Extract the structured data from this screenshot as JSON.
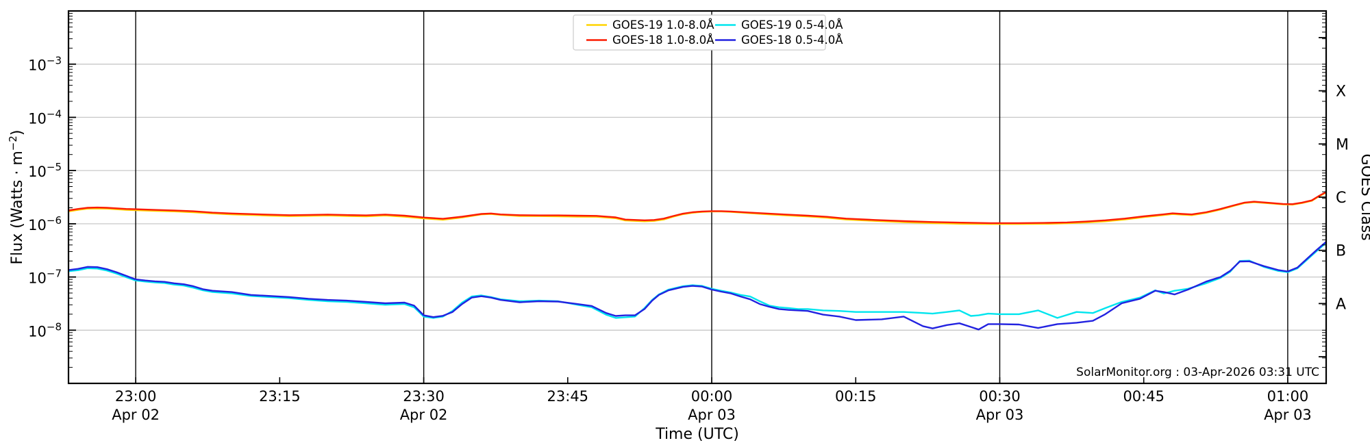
{
  "watermark": "SolarMonitor.org : 03-Apr-2026 03:31 UTC",
  "x_axis": {
    "title": "Time (UTC)",
    "ticks": [
      {
        "m": 0,
        "label": "23:00",
        "date": "Apr 02",
        "line": true
      },
      {
        "m": 15,
        "label": "23:15"
      },
      {
        "m": 30,
        "label": "23:30",
        "date": "Apr 02",
        "line": true
      },
      {
        "m": 45,
        "label": "23:45"
      },
      {
        "m": 60,
        "label": "00:00",
        "date": "Apr 03",
        "line": true
      },
      {
        "m": 75,
        "label": "00:15"
      },
      {
        "m": 90,
        "label": "00:30",
        "date": "Apr 03",
        "line": true
      },
      {
        "m": 105,
        "label": "00:45"
      },
      {
        "m": 120,
        "label": "01:00",
        "date": "Apr 03",
        "line": true
      }
    ]
  },
  "y_axis": {
    "title_prefix": "Flux (Watts · m",
    "title_sup": "−2",
    "title_suffix": ")",
    "label_base": "10",
    "decade_exponents": [
      -3,
      -4,
      -5,
      -6,
      -7,
      -8
    ]
  },
  "right_axis": {
    "title": "GOES Class",
    "classes": [
      {
        "label": "X",
        "exp": -3.5
      },
      {
        "label": "M",
        "exp": -4.5
      },
      {
        "label": "C",
        "exp": -5.5
      },
      {
        "label": "B",
        "exp": -6.5
      },
      {
        "label": "A",
        "exp": -7.5
      }
    ],
    "extra_tick_exps": [
      -2.5,
      -8.5
    ]
  },
  "legend": {
    "items": [
      {
        "id": "goes19-long",
        "label": "GOES-19 1.0-8.0Å",
        "color": "#ffd400"
      },
      {
        "id": "goes18-long",
        "label": "GOES-18 1.0-8.0Å",
        "color": "#fb1b00"
      },
      {
        "id": "goes19-short",
        "label": "GOES-19 0.5-4.0Å",
        "color": "#00e5ee"
      },
      {
        "id": "goes18-short",
        "label": "GOES-18 0.5-4.0Å",
        "color": "#2222e0"
      }
    ]
  },
  "colors": {
    "grid": "#c8c8c8",
    "day_line": "#000000",
    "spine": "#000000",
    "legend_border": "#cccccc"
  },
  "chart_data": {
    "type": "line",
    "title": "",
    "xlabel": "Time (UTC)",
    "ylabel": "Flux (Watts · m^-2)",
    "x_unit": "minutes relative to 23:00 UTC (Apr 02 -> Apr 03 2026)",
    "xlim_minutes": [
      -7,
      124
    ],
    "ylim": [
      1e-09,
      0.01
    ],
    "yscale": "log",
    "grid": "horizontal gray at decades, vertical black at 30-min marks",
    "legend_position": "top center, 2 columns",
    "series": [
      {
        "id": "goes19-long",
        "name": "GOES-19 1.0-8.0Å",
        "color": "#ffd400",
        "unit_scale": 1e-06,
        "x_minutes": [
          -7,
          -6,
          -5,
          -4,
          -3,
          -2,
          -1,
          0,
          2,
          4,
          6,
          8,
          10,
          12,
          14,
          16,
          18,
          20,
          22,
          24,
          26,
          28,
          30,
          32,
          34,
          36,
          37,
          38,
          40,
          42,
          44,
          46,
          48,
          50,
          51,
          53,
          54,
          55,
          56,
          57,
          58,
          59,
          60,
          61,
          62,
          64,
          66,
          68,
          70,
          72,
          74,
          77,
          80,
          83,
          86,
          89,
          92,
          95,
          97,
          99,
          101,
          103,
          105,
          107,
          108,
          109,
          110,
          111.5,
          113,
          114.5,
          115.5,
          116.5,
          118,
          119.5,
          120.5,
          121.5,
          122.5,
          123.2,
          124
        ],
        "flux_scaled": [
          1.71,
          1.82,
          1.92,
          1.94,
          1.92,
          1.87,
          1.82,
          1.8,
          1.75,
          1.71,
          1.65,
          1.56,
          1.5,
          1.46,
          1.42,
          1.39,
          1.41,
          1.43,
          1.4,
          1.38,
          1.43,
          1.36,
          1.26,
          1.19,
          1.31,
          1.5,
          1.53,
          1.47,
          1.4,
          1.39,
          1.38,
          1.36,
          1.35,
          1.27,
          1.15,
          1.11,
          1.13,
          1.2,
          1.36,
          1.51,
          1.61,
          1.67,
          1.7,
          1.7,
          1.67,
          1.58,
          1.5,
          1.43,
          1.37,
          1.3,
          1.2,
          1.13,
          1.07,
          1.03,
          1.0,
          0.99,
          0.99,
          1.0,
          1.02,
          1.06,
          1.11,
          1.2,
          1.33,
          1.45,
          1.52,
          1.48,
          1.45,
          1.6,
          1.85,
          2.2,
          2.45,
          2.55,
          2.43,
          2.31,
          2.29,
          2.45,
          2.7,
          3.24,
          3.88
        ]
      },
      {
        "id": "goes18-long",
        "name": "GOES-18 1.0-8.0Å",
        "color": "#fb1b00",
        "unit_scale": 1e-06,
        "x_minutes": [
          -7,
          -6,
          -5,
          -4,
          -3,
          -2,
          -1,
          0,
          2,
          4,
          6,
          8,
          10,
          12,
          14,
          16,
          18,
          20,
          22,
          24,
          26,
          28,
          30,
          32,
          34,
          36,
          37,
          38,
          40,
          42,
          44,
          46,
          48,
          50,
          51,
          53,
          54,
          55,
          56,
          57,
          58,
          59,
          60,
          61,
          62,
          64,
          66,
          68,
          70,
          72,
          74,
          77,
          80,
          83,
          86,
          89,
          92,
          95,
          97,
          99,
          101,
          103,
          105,
          107,
          108,
          109,
          110,
          111.5,
          113,
          114.5,
          115.5,
          116.5,
          118,
          119.5,
          120.5,
          121.5,
          122.5,
          123.2,
          124
        ],
        "flux_scaled": [
          1.78,
          1.9,
          2.0,
          2.02,
          2.0,
          1.95,
          1.9,
          1.88,
          1.82,
          1.78,
          1.72,
          1.62,
          1.56,
          1.52,
          1.48,
          1.45,
          1.47,
          1.49,
          1.46,
          1.44,
          1.49,
          1.42,
          1.31,
          1.24,
          1.36,
          1.53,
          1.56,
          1.5,
          1.45,
          1.44,
          1.44,
          1.42,
          1.41,
          1.32,
          1.2,
          1.16,
          1.18,
          1.25,
          1.4,
          1.55,
          1.65,
          1.7,
          1.73,
          1.73,
          1.7,
          1.62,
          1.55,
          1.48,
          1.42,
          1.35,
          1.25,
          1.18,
          1.12,
          1.08,
          1.05,
          1.03,
          1.03,
          1.04,
          1.06,
          1.1,
          1.16,
          1.25,
          1.38,
          1.5,
          1.57,
          1.53,
          1.5,
          1.65,
          1.9,
          2.25,
          2.5,
          2.6,
          2.48,
          2.36,
          2.34,
          2.5,
          2.75,
          3.3,
          3.95
        ]
      },
      {
        "id": "goes19-short",
        "name": "GOES-19 0.5-4.0Å",
        "color": "#00e5ee",
        "unit_scale": 1e-08,
        "x_minutes": [
          -7,
          -6,
          -5,
          -4,
          -3,
          -2,
          -1,
          0,
          1,
          2,
          3,
          4,
          5,
          6,
          7,
          8,
          10,
          12,
          14,
          16,
          18,
          20,
          22,
          24,
          26,
          28,
          29,
          30,
          31,
          32,
          33,
          34,
          35,
          36,
          37,
          38,
          40,
          42,
          44,
          46,
          47.5,
          49,
          50,
          51,
          52,
          53,
          53.8,
          54.5,
          55.5,
          57,
          58,
          59,
          60,
          61,
          62,
          63,
          64,
          65,
          66,
          67,
          68,
          69,
          70,
          71.6,
          73.3,
          75,
          77.7,
          80,
          82,
          83,
          84.5,
          85.8,
          87,
          87.8,
          88.8,
          90,
          92,
          94,
          96,
          98,
          99.7,
          101,
          102.7,
          104.6,
          106.2,
          107.1,
          108.2,
          109.6,
          111.5,
          113,
          114,
          115,
          116,
          117.5,
          119,
          120,
          121,
          122,
          123,
          124
        ],
        "flux_scaled": [
          12.8,
          13.4,
          14.6,
          14.4,
          13.2,
          11.6,
          9.9,
          8.6,
          8.2,
          7.9,
          7.7,
          7.2,
          6.9,
          6.3,
          5.6,
          5.2,
          4.9,
          4.4,
          4.2,
          4.0,
          3.7,
          3.5,
          3.4,
          3.2,
          3.0,
          3.1,
          2.7,
          1.8,
          1.7,
          1.8,
          2.3,
          3.3,
          4.3,
          4.5,
          4.2,
          3.8,
          3.5,
          3.6,
          3.5,
          3.0,
          2.7,
          1.95,
          1.7,
          1.75,
          1.8,
          2.6,
          3.7,
          4.7,
          5.8,
          6.7,
          7.0,
          6.8,
          6.0,
          5.5,
          5.1,
          4.6,
          4.3,
          3.5,
          2.9,
          2.7,
          2.6,
          2.5,
          2.5,
          2.35,
          2.3,
          2.2,
          2.2,
          2.2,
          2.1,
          2.05,
          2.2,
          2.35,
          1.85,
          1.9,
          2.05,
          2.0,
          2.0,
          2.35,
          1.7,
          2.2,
          2.1,
          2.6,
          3.4,
          4.1,
          5.6,
          4.9,
          5.5,
          6.0,
          7.6,
          9.6,
          12.5,
          20.0,
          20.3,
          15.5,
          13.0,
          12.3,
          14.5,
          21.0,
          30.5,
          44.0
        ]
      },
      {
        "id": "goes18-short",
        "name": "GOES-18 0.5-4.0Å",
        "color": "#2222e0",
        "unit_scale": 1e-08,
        "x_minutes": [
          -7,
          -6,
          -5,
          -4,
          -3,
          -2,
          -1,
          0,
          1,
          2,
          3,
          4,
          5,
          6,
          7,
          8,
          10,
          12,
          14,
          16,
          18,
          20,
          22,
          24,
          26,
          28,
          29,
          30,
          31,
          32,
          33,
          34,
          35,
          36,
          37,
          38,
          40,
          42,
          44,
          46,
          47.5,
          49,
          50,
          51,
          52,
          53,
          53.8,
          54.5,
          55.5,
          57,
          58,
          59,
          60,
          61,
          62,
          63,
          64,
          65,
          66,
          67,
          68,
          69,
          70,
          71.6,
          73.3,
          75,
          77.7,
          80,
          82,
          83,
          84.5,
          85.8,
          87,
          87.8,
          88.8,
          90,
          92,
          94,
          96,
          98,
          99.7,
          101,
          102.7,
          104.6,
          106.2,
          107.1,
          108.2,
          109.6,
          111.5,
          113,
          114,
          115,
          116,
          117.5,
          119,
          120,
          121,
          122,
          123,
          124
        ],
        "flux_scaled": [
          13.5,
          14.2,
          15.5,
          15.3,
          14.0,
          12.3,
          10.5,
          9.0,
          8.6,
          8.3,
          8.1,
          7.6,
          7.3,
          6.7,
          5.9,
          5.5,
          5.2,
          4.6,
          4.4,
          4.2,
          3.9,
          3.7,
          3.6,
          3.4,
          3.2,
          3.3,
          2.9,
          1.9,
          1.76,
          1.86,
          2.2,
          3.1,
          4.1,
          4.35,
          4.1,
          3.7,
          3.35,
          3.5,
          3.45,
          3.1,
          2.85,
          2.1,
          1.85,
          1.9,
          1.9,
          2.5,
          3.6,
          4.6,
          5.6,
          6.5,
          6.8,
          6.6,
          5.8,
          5.3,
          4.9,
          4.3,
          3.8,
          3.1,
          2.75,
          2.5,
          2.4,
          2.35,
          2.3,
          1.96,
          1.8,
          1.55,
          1.6,
          1.8,
          1.19,
          1.08,
          1.25,
          1.35,
          1.15,
          1.03,
          1.3,
          1.3,
          1.28,
          1.1,
          1.3,
          1.38,
          1.5,
          2.0,
          3.2,
          3.9,
          5.5,
          5.2,
          4.7,
          5.8,
          8.2,
          10.0,
          13.0,
          19.5,
          19.7,
          16.0,
          13.5,
          12.7,
          15.0,
          22.0,
          32.0,
          46.0
        ]
      }
    ]
  }
}
